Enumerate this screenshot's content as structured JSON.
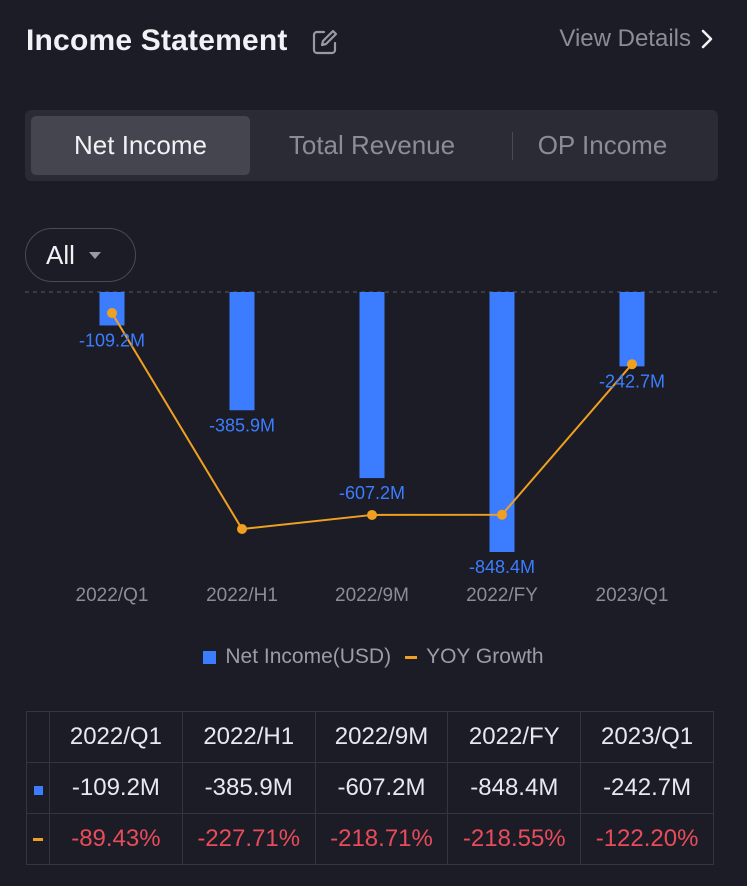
{
  "header": {
    "title": "Income Statement",
    "view_details": "View Details"
  },
  "tabs": [
    {
      "label": "Net Income",
      "active": true
    },
    {
      "label": "Total Revenue",
      "active": false
    },
    {
      "label": "OP Income",
      "active": false
    }
  ],
  "filter": {
    "label": "All"
  },
  "legend": {
    "bar": "Net Income(USD)",
    "line": "YOY Growth"
  },
  "colors": {
    "bar": "#3c7dff",
    "line": "#f0a020",
    "negative": "#e84c5a"
  },
  "chart_data": {
    "type": "bar",
    "categories": [
      "2022/Q1",
      "2022/H1",
      "2022/9M",
      "2022/FY",
      "2023/Q1"
    ],
    "series": [
      {
        "name": "Net Income(USD)",
        "type": "bar",
        "unit": "M USD",
        "values": [
          -109.2,
          -385.9,
          -607.2,
          -848.4,
          -242.7
        ],
        "labels": [
          "-109.2M",
          "-385.9M",
          "-607.2M",
          "-848.4M",
          "-242.7M"
        ]
      },
      {
        "name": "YOY Growth",
        "type": "line",
        "unit": "%",
        "values": [
          -89.43,
          -227.71,
          -218.71,
          -218.55,
          -122.2
        ]
      }
    ],
    "legend_position": "bottom",
    "grid": false
  },
  "table": {
    "headers": [
      "2022/Q1",
      "2022/H1",
      "2022/9M",
      "2022/FY",
      "2023/Q1"
    ],
    "net_income": [
      "-109.2M",
      "-385.9M",
      "-607.2M",
      "-848.4M",
      "-242.7M"
    ],
    "yoy": [
      "-89.43%",
      "-227.71%",
      "-218.71%",
      "-218.55%",
      "-122.20%"
    ]
  }
}
